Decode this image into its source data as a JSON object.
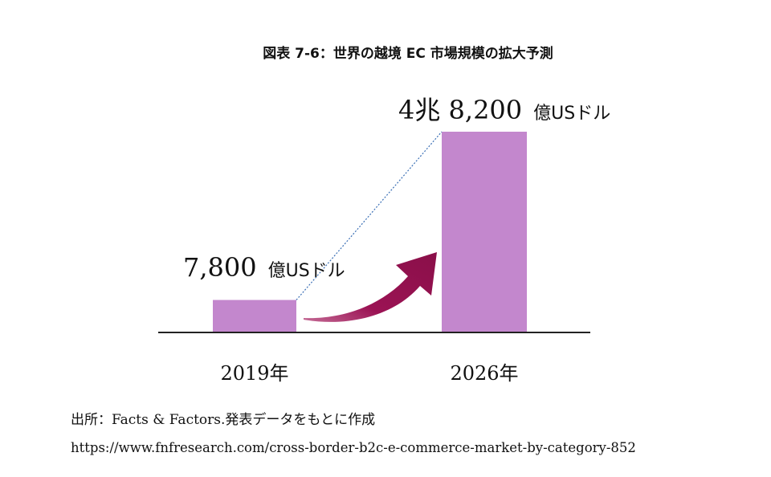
{
  "chart_data": {
    "type": "bar",
    "title": "図表 7-6：世界の越境 EC 市場規模の拡大予測",
    "categories": [
      "2019年",
      "2026年"
    ],
    "values": [
      7800,
      48200
    ],
    "unit": "億USドル",
    "value_labels": [
      {
        "number": "7,800",
        "unit": "億USドル"
      },
      {
        "number": "4兆 8,200",
        "unit": "億USドル"
      }
    ],
    "xlabel": "",
    "ylabel": "",
    "grid": false,
    "legend": "none"
  },
  "colors": {
    "bar": "#c387cd",
    "arrow": "#9b1354",
    "connector": "#3a6fb5",
    "baseline": "#222222"
  },
  "source": {
    "line": "出所：Facts & Factors.発表データをもとに作成",
    "url": "https://www.fnfresearch.com/cross-border-b2c-e-commerce-market-by-category-852"
  }
}
